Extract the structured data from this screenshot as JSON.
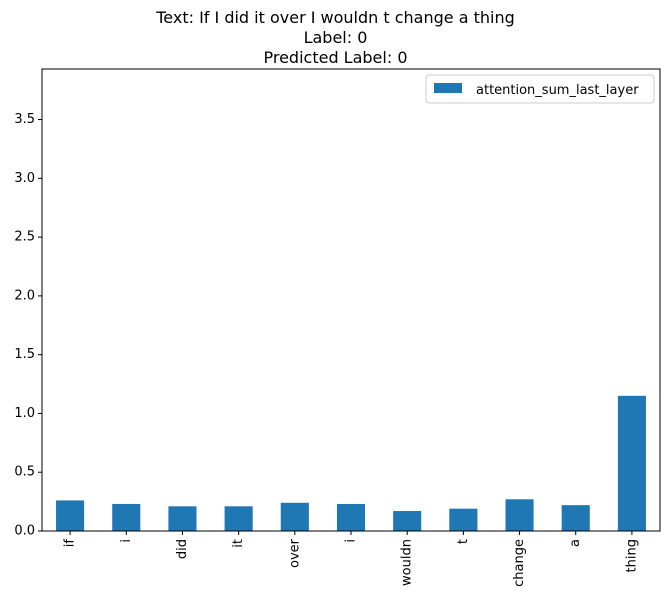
{
  "chart_data": {
    "type": "bar",
    "title_lines": [
      "Text: If I did it over I wouldn t change a thing",
      "Label: 0",
      "Predicted Label: 0"
    ],
    "xlabel": "",
    "ylabel": "",
    "categories": [
      "if",
      "i",
      "did",
      "it",
      "over",
      "i",
      "wouldn",
      "t",
      "change",
      "a",
      "thing"
    ],
    "series": [
      {
        "name": "attention_sum_last_layer",
        "values": [
          0.26,
          0.23,
          0.21,
          0.21,
          0.24,
          0.23,
          0.17,
          0.19,
          0.27,
          0.22,
          1.15
        ]
      }
    ],
    "ylim": [
      0,
      3.93
    ],
    "yticks": [
      "0.0",
      "0.5",
      "1.0",
      "1.5",
      "2.0",
      "2.5",
      "3.0",
      "3.5"
    ],
    "grid": false,
    "legend_position": "top-right",
    "bar_color": "#1f77b4"
  }
}
